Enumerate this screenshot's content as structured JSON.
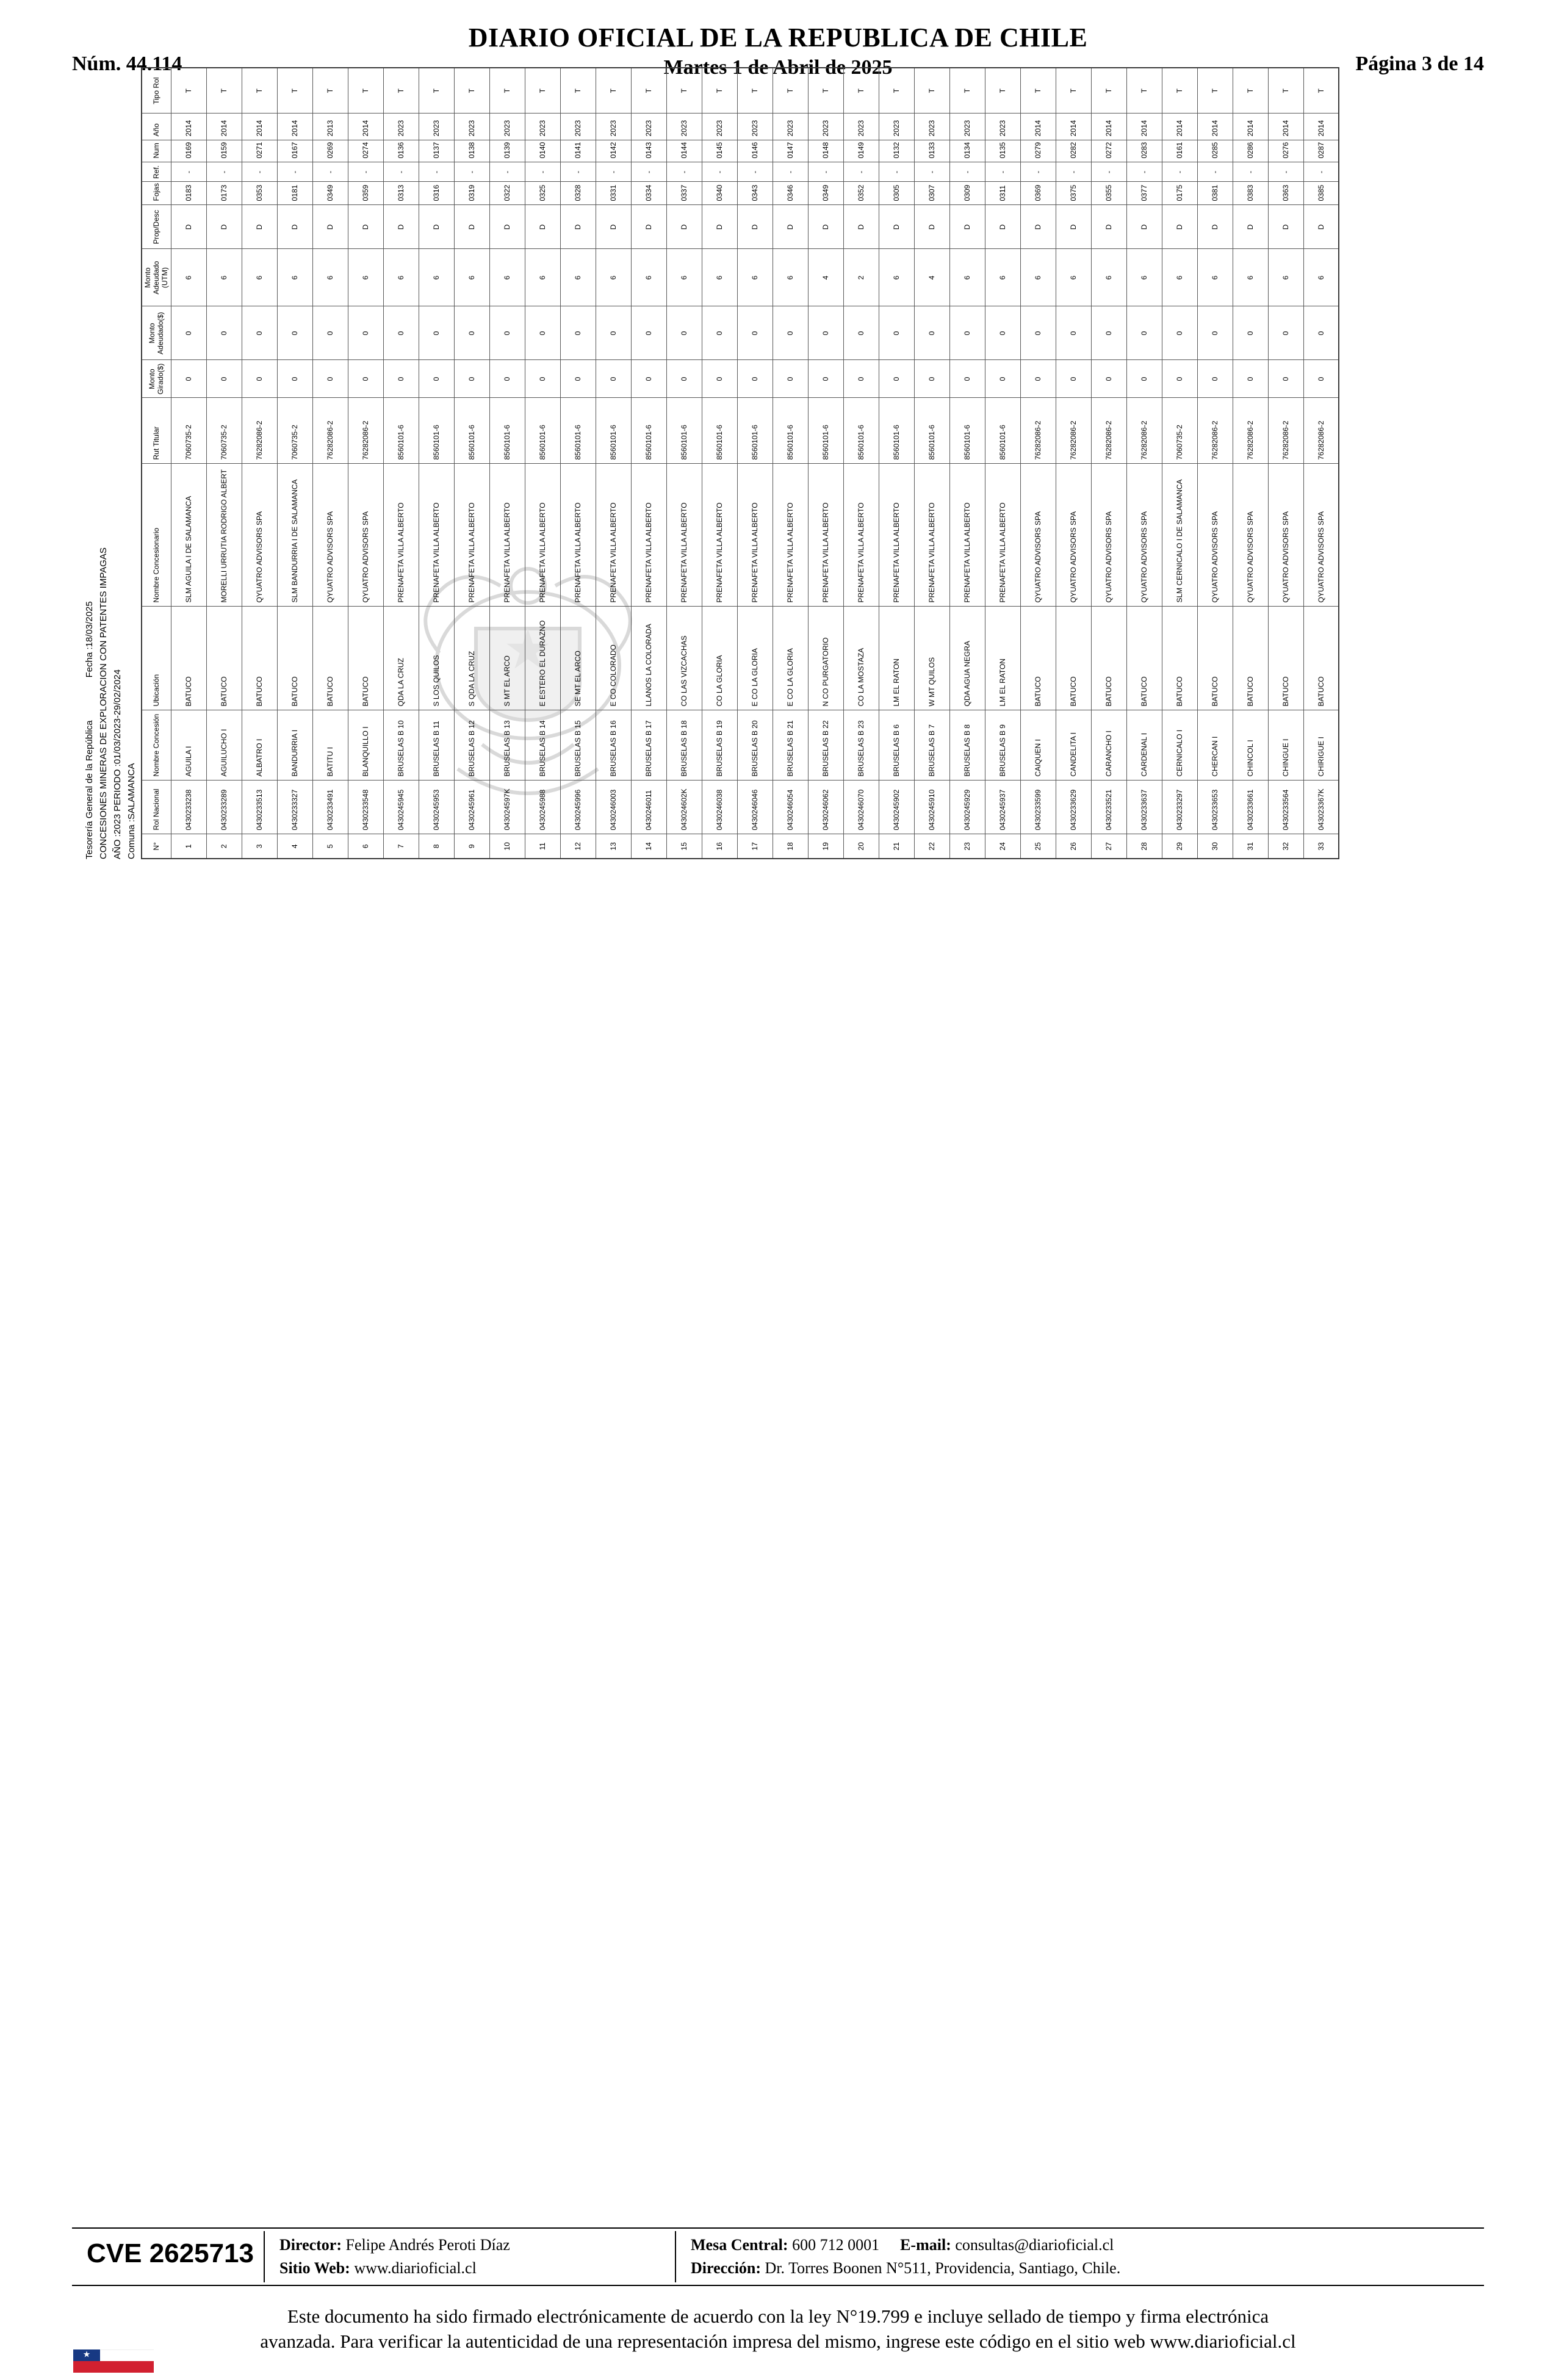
{
  "header": {
    "issue": "Núm. 44.114",
    "title": "DIARIO OFICIAL DE LA REPUBLICA DE CHILE",
    "date": "Martes 1 de Abril de 2025",
    "page": "Página 3 de 14"
  },
  "report": {
    "agency": "Tesorería General de la República",
    "fecha": "Fecha :18/03/2025",
    "subject": "CONCESIONES MINERAS DE EXPLORACION CON PATENTES IMPAGAS",
    "period": "AÑO :2023 PERIODO :01/03/2023-29/02/2024",
    "comuna": "Comuna :SALAMANCA"
  },
  "table": {
    "columns": [
      "N°",
      "Rol Nacional",
      "Nombre Concesión",
      "Ubicación",
      "Nombre Concesionario",
      "Rut Titular",
      "Monto\nGirado($)",
      "Monto\nAdeudado($)",
      "Monto\nAdeudado\n(UTM)",
      "Prop/Desc",
      "Fojas",
      "Ref.",
      "Num",
      "Año",
      "Tipo Rol"
    ],
    "rows": [
      [
        "1",
        "0430233238",
        "AGUILA I",
        "BATUCO",
        "SLM AGUILA I DE SALAMANCA",
        "7060735-2",
        "0",
        "0",
        "6",
        "D",
        "0183",
        "-",
        "0169",
        "2014",
        "T"
      ],
      [
        "2",
        "0430233289",
        "AGUILUCHO I",
        "BATUCO",
        "MORELLI URRUTIA RODRIGO ALBERT",
        "7060735-2",
        "0",
        "0",
        "6",
        "D",
        "0173",
        "-",
        "0159",
        "2014",
        "T"
      ],
      [
        "3",
        "0430233513",
        "ALBATRO I",
        "BATUCO",
        "QYUATRO ADVISORS SPA",
        "76282086-2",
        "0",
        "0",
        "6",
        "D",
        "0353",
        "-",
        "0271",
        "2014",
        "T"
      ],
      [
        "4",
        "0430233327",
        "BANDURRIA I",
        "BATUCO",
        "SLM BANDURRIA I DE SALAMANCA",
        "7060735-2",
        "0",
        "0",
        "6",
        "D",
        "0181",
        "-",
        "0167",
        "2014",
        "T"
      ],
      [
        "5",
        "0430233491",
        "BATITU I",
        "BATUCO",
        "QYUATRO ADVISORS SPA",
        "76282086-2",
        "0",
        "0",
        "6",
        "D",
        "0349",
        "-",
        "0269",
        "2013",
        "T"
      ],
      [
        "6",
        "0430233548",
        "BLANQUILLO I",
        "BATUCO",
        "QYUATRO ADVISORS SPA",
        "76282086-2",
        "0",
        "0",
        "6",
        "D",
        "0359",
        "-",
        "0274",
        "2014",
        "T"
      ],
      [
        "7",
        "0430245945",
        "BRUSELAS B 10",
        "QDA LA CRUZ",
        "PRENAFETA VILLA ALBERTO",
        "8560101-6",
        "0",
        "0",
        "6",
        "D",
        "0313",
        "-",
        "0136",
        "2023",
        "T"
      ],
      [
        "8",
        "0430245953",
        "BRUSELAS B 11",
        "S LOS QUILOS",
        "PRENAFETA VILLA ALBERTO",
        "8560101-6",
        "0",
        "0",
        "6",
        "D",
        "0316",
        "-",
        "0137",
        "2023",
        "T"
      ],
      [
        "9",
        "0430245961",
        "BRUSELAS B 12",
        "S QDA LA CRUZ",
        "PRENAFETA VILLA ALBERTO",
        "8560101-6",
        "0",
        "0",
        "6",
        "D",
        "0319",
        "-",
        "0138",
        "2023",
        "T"
      ],
      [
        "10",
        "043024597K",
        "BRUSELAS B 13",
        "S MT EL ARCO",
        "PRENAFETA VILLA ALBERTO",
        "8560101-6",
        "0",
        "0",
        "6",
        "D",
        "0322",
        "-",
        "0139",
        "2023",
        "T"
      ],
      [
        "11",
        "0430245988",
        "BRUSELAS B 14",
        "E ESTERO EL DURAZNO",
        "PRENAFETA VILLA ALBERTO",
        "8560101-6",
        "0",
        "0",
        "6",
        "D",
        "0325",
        "-",
        "0140",
        "2023",
        "T"
      ],
      [
        "12",
        "0430245996",
        "BRUSELAS B 15",
        "SE MT EL ARCO",
        "PRENAFETA VILLA ALBERTO",
        "8560101-6",
        "0",
        "0",
        "6",
        "D",
        "0328",
        "-",
        "0141",
        "2023",
        "T"
      ],
      [
        "13",
        "0430246003",
        "BRUSELAS B 16",
        "E CO COLORADO",
        "PRENAFETA VILLA ALBERTO",
        "8560101-6",
        "0",
        "0",
        "6",
        "D",
        "0331",
        "-",
        "0142",
        "2023",
        "T"
      ],
      [
        "14",
        "0430246011",
        "BRUSELAS B 17",
        "LLANOS LA COLORADA",
        "PRENAFETA VILLA ALBERTO",
        "8560101-6",
        "0",
        "0",
        "6",
        "D",
        "0334",
        "-",
        "0143",
        "2023",
        "T"
      ],
      [
        "15",
        "043024602K",
        "BRUSELAS B 18",
        "CO LAS VIZCACHAS",
        "PRENAFETA VILLA ALBERTO",
        "8560101-6",
        "0",
        "0",
        "6",
        "D",
        "0337",
        "-",
        "0144",
        "2023",
        "T"
      ],
      [
        "16",
        "0430246038",
        "BRUSELAS B 19",
        "CO LA GLORIA",
        "PRENAFETA VILLA ALBERTO",
        "8560101-6",
        "0",
        "0",
        "6",
        "D",
        "0340",
        "-",
        "0145",
        "2023",
        "T"
      ],
      [
        "17",
        "0430246046",
        "BRUSELAS B 20",
        "E CO LA GLORIA",
        "PRENAFETA VILLA ALBERTO",
        "8560101-6",
        "0",
        "0",
        "6",
        "D",
        "0343",
        "-",
        "0146",
        "2023",
        "T"
      ],
      [
        "18",
        "0430246054",
        "BRUSELAS B 21",
        "E CO LA GLORIA",
        "PRENAFETA VILLA ALBERTO",
        "8560101-6",
        "0",
        "0",
        "6",
        "D",
        "0346",
        "-",
        "0147",
        "2023",
        "T"
      ],
      [
        "19",
        "0430246062",
        "BRUSELAS B 22",
        "N CO PURGATORIO",
        "PRENAFETA VILLA ALBERTO",
        "8560101-6",
        "0",
        "0",
        "4",
        "D",
        "0349",
        "-",
        "0148",
        "2023",
        "T"
      ],
      [
        "20",
        "0430246070",
        "BRUSELAS B 23",
        "CO LA MOSTAZA",
        "PRENAFETA VILLA ALBERTO",
        "8560101-6",
        "0",
        "0",
        "2",
        "D",
        "0352",
        "-",
        "0149",
        "2023",
        "T"
      ],
      [
        "21",
        "0430245902",
        "BRUSELAS B 6",
        "LM EL RATON",
        "PRENAFETA VILLA ALBERTO",
        "8560101-6",
        "0",
        "0",
        "6",
        "D",
        "0305",
        "-",
        "0132",
        "2023",
        "T"
      ],
      [
        "22",
        "0430245910",
        "BRUSELAS B 7",
        "W MT QUILOS",
        "PRENAFETA VILLA ALBERTO",
        "8560101-6",
        "0",
        "0",
        "4",
        "D",
        "0307",
        "-",
        "0133",
        "2023",
        "T"
      ],
      [
        "23",
        "0430245929",
        "BRUSELAS B 8",
        "QDA AGUA NEGRA",
        "PRENAFETA VILLA ALBERTO",
        "8560101-6",
        "0",
        "0",
        "6",
        "D",
        "0309",
        "-",
        "0134",
        "2023",
        "T"
      ],
      [
        "24",
        "0430245937",
        "BRUSELAS B 9",
        "LM EL RATON",
        "PRENAFETA VILLA ALBERTO",
        "8560101-6",
        "0",
        "0",
        "6",
        "D",
        "0311",
        "-",
        "0135",
        "2023",
        "T"
      ],
      [
        "25",
        "0430233599",
        "CAIQUEN I",
        "BATUCO",
        "QYUATRO ADVISORS SPA",
        "76282086-2",
        "0",
        "0",
        "6",
        "D",
        "0369",
        "-",
        "0279",
        "2014",
        "T"
      ],
      [
        "26",
        "0430233629",
        "CANDELITA I",
        "BATUCO",
        "QYUATRO ADVISORS SPA",
        "76282086-2",
        "0",
        "0",
        "6",
        "D",
        "0375",
        "-",
        "0282",
        "2014",
        "T"
      ],
      [
        "27",
        "0430233521",
        "CARANCHO I",
        "BATUCO",
        "QYUATRO ADVISORS SPA",
        "76282086-2",
        "0",
        "0",
        "6",
        "D",
        "0355",
        "-",
        "0272",
        "2014",
        "T"
      ],
      [
        "28",
        "0430233637",
        "CARDENAL I",
        "BATUCO",
        "QYUATRO ADVISORS SPA",
        "76282086-2",
        "0",
        "0",
        "6",
        "D",
        "0377",
        "-",
        "0283",
        "2014",
        "T"
      ],
      [
        "29",
        "0430233297",
        "CERNICALO I",
        "BATUCO",
        "SLM CERNICALO I DE SALAMANCA",
        "7060735-2",
        "0",
        "0",
        "6",
        "D",
        "0175",
        "-",
        "0161",
        "2014",
        "T"
      ],
      [
        "30",
        "0430233653",
        "CHERCAN I",
        "BATUCO",
        "QYUATRO ADVISORS SPA",
        "76282086-2",
        "0",
        "0",
        "6",
        "D",
        "0381",
        "-",
        "0285",
        "2014",
        "T"
      ],
      [
        "31",
        "0430233661",
        "CHINCOL I",
        "BATUCO",
        "QYUATRO ADVISORS SPA",
        "76282086-2",
        "0",
        "0",
        "6",
        "D",
        "0383",
        "-",
        "0286",
        "2014",
        "T"
      ],
      [
        "32",
        "0430233564",
        "CHINGUE I",
        "BATUCO",
        "QYUATRO ADVISORS SPA",
        "76282086-2",
        "0",
        "0",
        "6",
        "D",
        "0363",
        "-",
        "0276",
        "2014",
        "T"
      ],
      [
        "33",
        "043023367K",
        "CHIRIGUE I",
        "BATUCO",
        "QYUATRO ADVISORS SPA",
        "76282086-2",
        "0",
        "0",
        "6",
        "D",
        "0385",
        "-",
        "0287",
        "2014",
        "T"
      ]
    ]
  },
  "footer": {
    "cve": "CVE 2625713",
    "director_label": "Director:",
    "director": "Felipe Andrés Peroti Díaz",
    "web_label": "Sitio Web:",
    "web": "www.diarioficial.cl",
    "phone_label": "Mesa Central:",
    "phone": "600 712 0001",
    "email_label": "E-mail:",
    "email": "consultas@diarioficial.cl",
    "address_label": "Dirección:",
    "address": "Dr. Torres Boonen N°511, Providencia, Santiago, Chile."
  },
  "legal": {
    "line1": "Este documento ha sido firmado electrónicamente de acuerdo con la ley N°19.799 e incluye sellado de tiempo y firma electrónica",
    "line2": "avanzada. Para verificar la autenticidad de una representación impresa del mismo, ingrese este código en el sitio web www.diarioficial.cl"
  },
  "colors": {
    "flag_blue": "#173983",
    "flag_red": "#d22030"
  }
}
